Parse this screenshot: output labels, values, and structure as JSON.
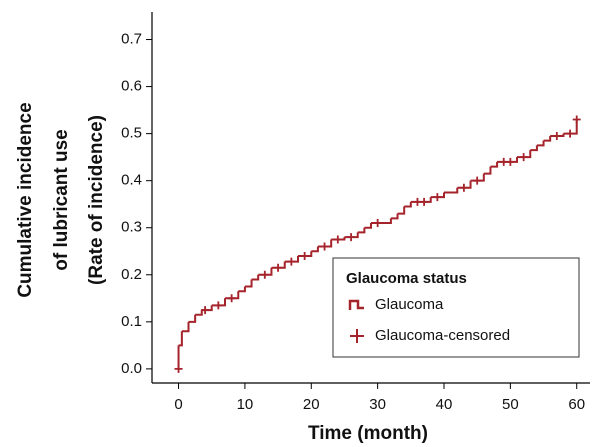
{
  "chart_data": {
    "type": "step",
    "x_label": "Time (month)",
    "y_label": [
      "Cumulative incidence",
      "of lubricant use",
      "(Rate of incidence)"
    ],
    "xlim": [
      -4,
      62
    ],
    "ylim": [
      -0.03,
      0.75
    ],
    "xticks": [
      0,
      10,
      20,
      30,
      40,
      50,
      60
    ],
    "yticks": [
      {
        "value": 0,
        "label": "0.0"
      },
      0.1,
      0.2,
      0.3,
      0.4,
      0.5,
      0.6,
      0.7
    ],
    "legend_title": "Glaucoma status",
    "legend_position": "lower right",
    "series": [
      {
        "name": "Glaucoma",
        "color": "#a5232b",
        "x": [
          0,
          0,
          0.5,
          1.5,
          2.5,
          3.5,
          5,
          7,
          9,
          10,
          11,
          12,
          14,
          16,
          18,
          20,
          21,
          23,
          25,
          27,
          28,
          29,
          32,
          33,
          34,
          35,
          38,
          40,
          42,
          44,
          46,
          47,
          48,
          51,
          53,
          54,
          55,
          56,
          58,
          60
        ],
        "values": [
          0,
          0.05,
          0.08,
          0.1,
          0.115,
          0.125,
          0.135,
          0.15,
          0.165,
          0.175,
          0.19,
          0.2,
          0.215,
          0.228,
          0.24,
          0.25,
          0.26,
          0.275,
          0.28,
          0.29,
          0.3,
          0.31,
          0.32,
          0.33,
          0.345,
          0.355,
          0.365,
          0.375,
          0.385,
          0.4,
          0.415,
          0.43,
          0.44,
          0.45,
          0.465,
          0.475,
          0.485,
          0.495,
          0.5,
          0.53
        ]
      },
      {
        "name": "Glaucoma-censored",
        "color": "#a5232b",
        "x": [
          0,
          4,
          6,
          8,
          13,
          15,
          17,
          19,
          22,
          24,
          26,
          30,
          36,
          37,
          39,
          43,
          45,
          49,
          50,
          52,
          57,
          59,
          60
        ],
        "values": [
          0,
          0.125,
          0.135,
          0.15,
          0.2,
          0.215,
          0.228,
          0.24,
          0.26,
          0.275,
          0.28,
          0.31,
          0.355,
          0.355,
          0.365,
          0.385,
          0.4,
          0.44,
          0.44,
          0.45,
          0.495,
          0.5,
          0.53
        ]
      }
    ]
  }
}
